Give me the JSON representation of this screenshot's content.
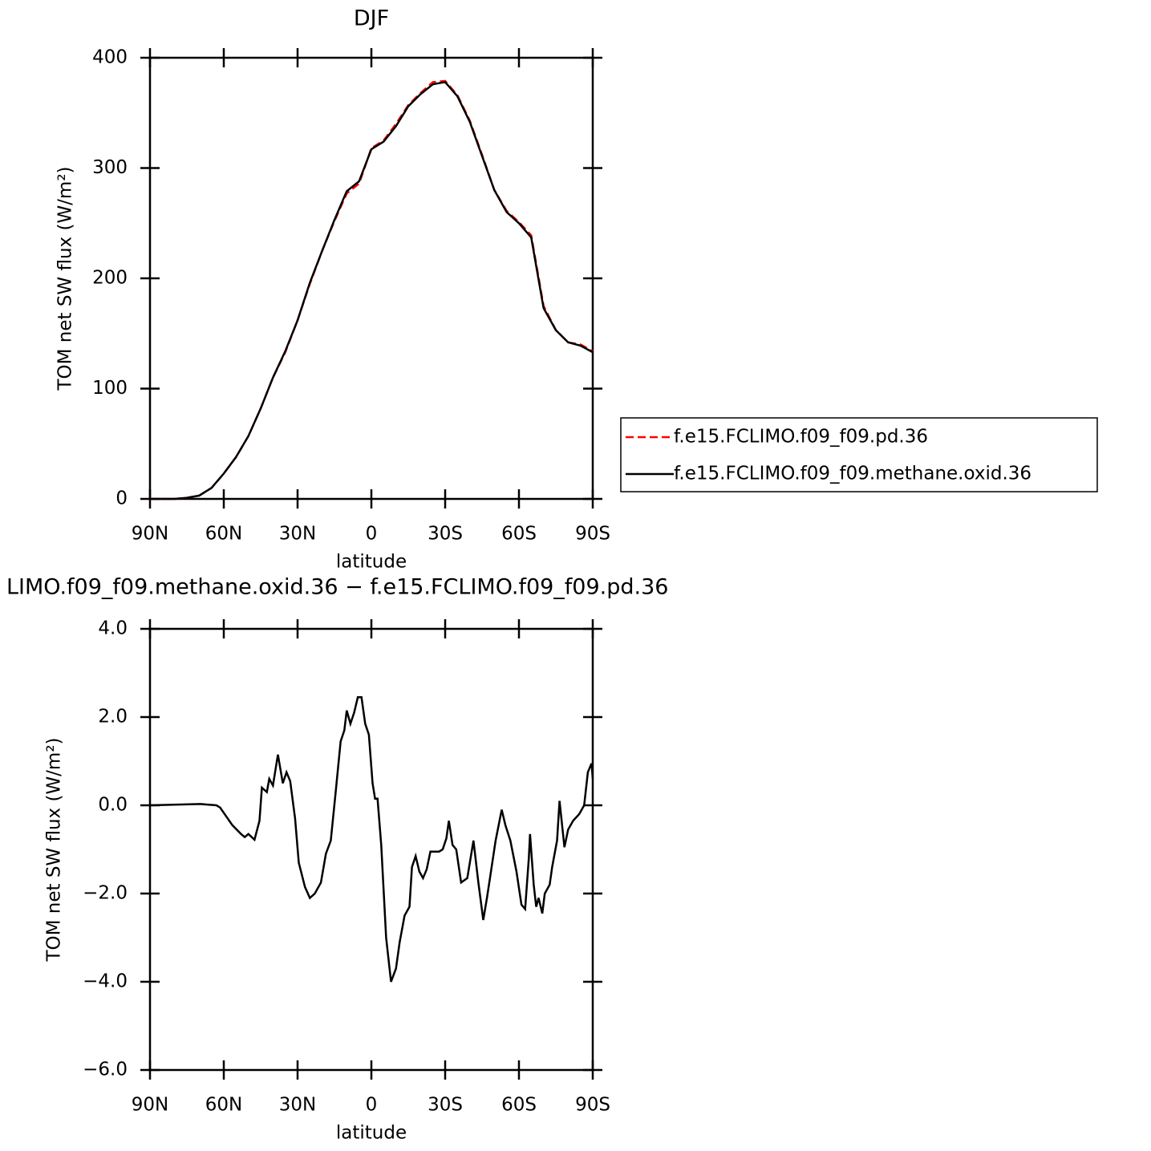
{
  "chart_data": [
    {
      "type": "line",
      "title": "DJF",
      "xlabel": "latitude",
      "ylabel": "TOM net SW flux (W/m²)",
      "x": [
        90,
        85,
        80,
        75,
        70,
        65,
        60,
        55,
        50,
        45,
        40,
        35,
        30,
        25,
        20,
        15,
        10,
        5,
        0,
        -5,
        -10,
        -15,
        -20,
        -25,
        -30,
        -35,
        -40,
        -45,
        -50,
        -55,
        -60,
        -65,
        -70,
        -75,
        -80,
        -85,
        -90
      ],
      "series": [
        {
          "name": "f.e15.FCLIMO.f09_f09.pd.36",
          "color": "#ff0000",
          "dashed": true,
          "values": [
            0,
            0,
            0,
            1,
            3,
            10,
            23,
            38,
            57,
            82,
            110,
            133,
            162,
            195,
            225,
            252,
            277,
            286,
            318,
            325,
            340,
            357,
            368,
            378,
            379,
            366,
            343,
            312,
            280,
            261,
            251,
            239,
            175,
            153,
            142,
            140,
            134
          ]
        },
        {
          "name": "f.e15.FCLIMO.f09_f09.methane.oxid.36",
          "color": "#000000",
          "dashed": false,
          "values": [
            0,
            0,
            0,
            1,
            3,
            10,
            23,
            38,
            57,
            82,
            110,
            134,
            162,
            196,
            225,
            253,
            279,
            288,
            317,
            324,
            338,
            356,
            367,
            376,
            378,
            365,
            342,
            311,
            280,
            260,
            250,
            237,
            173,
            153,
            142,
            139,
            133
          ]
        }
      ],
      "xlim": [
        90,
        -90
      ],
      "xticks": [
        {
          "value": 90,
          "label": "90N"
        },
        {
          "value": 60,
          "label": "60N"
        },
        {
          "value": 30,
          "label": "30N"
        },
        0,
        {
          "value": -30,
          "label": "30S"
        },
        {
          "value": -60,
          "label": "60S"
        },
        {
          "value": -90,
          "label": "90S"
        }
      ],
      "ylim": [
        0,
        400
      ],
      "yticks": [
        0,
        100,
        200,
        300,
        400
      ],
      "legend": "right"
    },
    {
      "type": "line",
      "title": "LIMO.f09_f09.methane.oxid.36 − f.e15.FCLIMO.f09_f09.pd.36",
      "xlabel": "latitude",
      "ylabel": "TOM net SW flux (W/m²)",
      "x": [
        90,
        69.5,
        63,
        61.5,
        56.5,
        53,
        51.5,
        50,
        47.5,
        45.5,
        44.5,
        42.5,
        41.5,
        40,
        38,
        36,
        34.5,
        33,
        31,
        29.5,
        27,
        25,
        23,
        20.5,
        18.5,
        16.5,
        14.5,
        12.5,
        11,
        10,
        8.5,
        7,
        5.5,
        4,
        2.5,
        1,
        -0.5,
        -1.5,
        -2.5,
        -4,
        -6,
        -8,
        -10,
        -11.5,
        -13.5,
        -15.5,
        -16.5,
        -18,
        -19.5,
        -21,
        -22.5,
        -24,
        -25.5,
        -27.5,
        -29,
        -30.5,
        -31.5,
        -33,
        -34.5,
        -36.5,
        -39,
        -41.5,
        -43.5,
        -45.5,
        -47,
        -48.5,
        -50.5,
        -53,
        -54.5,
        -56.5,
        -59,
        -61,
        -62.5,
        -64,
        -64.5,
        -66,
        -67,
        -68,
        -69.5,
        -70.5,
        -72.5,
        -73.5,
        -75.5,
        -76.5,
        -78.5,
        -80,
        -82,
        -84.5,
        -86.5,
        -88,
        -89.5,
        -90
      ],
      "color": "#000000",
      "values": [
        0,
        0.03,
        0,
        -0.05,
        -0.45,
        -0.65,
        -0.72,
        -0.65,
        -0.78,
        -0.35,
        0.4,
        0.3,
        0.6,
        0.45,
        1.15,
        0.5,
        0.75,
        0.55,
        -0.3,
        -1.3,
        -1.85,
        -2.1,
        -2,
        -1.75,
        -1.1,
        -0.8,
        0.3,
        1.45,
        1.7,
        2.15,
        1.85,
        2.1,
        2.45,
        2.45,
        1.85,
        1.6,
        0.5,
        0.15,
        0.15,
        -0.9,
        -3,
        -4,
        -3.7,
        -3.1,
        -2.5,
        -2.3,
        -1.4,
        -1.15,
        -1.5,
        -1.65,
        -1.45,
        -1.05,
        -1.05,
        -1.05,
        -1,
        -0.75,
        -0.35,
        -0.9,
        -1,
        -1.75,
        -1.65,
        -0.8,
        -1.75,
        -2.6,
        -2.1,
        -1.55,
        -0.8,
        -0.1,
        -0.45,
        -0.8,
        -1.5,
        -2.25,
        -2.35,
        -1.2,
        -0.65,
        -1.8,
        -2.3,
        -2.1,
        -2.45,
        -2,
        -1.8,
        -1.4,
        -0.8,
        0.1,
        -0.95,
        -0.55,
        -0.35,
        -0.2,
        0,
        0.75,
        0.95,
        0.6
      ],
      "xlim": [
        90,
        -90
      ],
      "xticks": [
        {
          "value": 90,
          "label": "90N"
        },
        {
          "value": 60,
          "label": "60N"
        },
        {
          "value": 30,
          "label": "30N"
        },
        0,
        {
          "value": -30,
          "label": "30S"
        },
        {
          "value": -60,
          "label": "60S"
        },
        {
          "value": -90,
          "label": "90S"
        }
      ],
      "ylim": [
        -6,
        4
      ],
      "yticks": [
        {
          "value": -6,
          "label": "−6.0"
        },
        {
          "value": -4,
          "label": "−4.0"
        },
        {
          "value": -2,
          "label": "−2.0"
        },
        {
          "value": 0,
          "label": "0.0"
        },
        {
          "value": 2,
          "label": "2.0"
        },
        {
          "value": 4,
          "label": "4.0"
        }
      ]
    }
  ]
}
